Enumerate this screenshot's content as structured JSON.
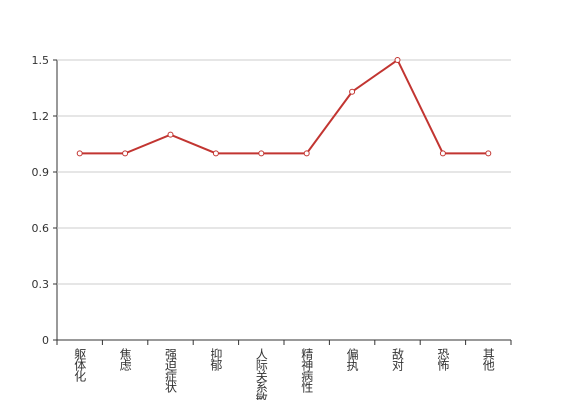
{
  "chart_data": {
    "type": "line",
    "categories": [
      "躯体化",
      "焦虑",
      "强迫症状",
      "抑郁",
      "人际关系敏感",
      "精神病性",
      "偏执",
      "敌对",
      "恐怖",
      "其他"
    ],
    "values": [
      1,
      1,
      1.1,
      1,
      1,
      1,
      1.33,
      1.5,
      1,
      1
    ],
    "color": "#c23531",
    "ylim": [
      0,
      1.5
    ],
    "yticks": [
      0,
      0.3,
      0.6,
      0.9,
      1.2,
      1.5
    ],
    "grid": true
  }
}
